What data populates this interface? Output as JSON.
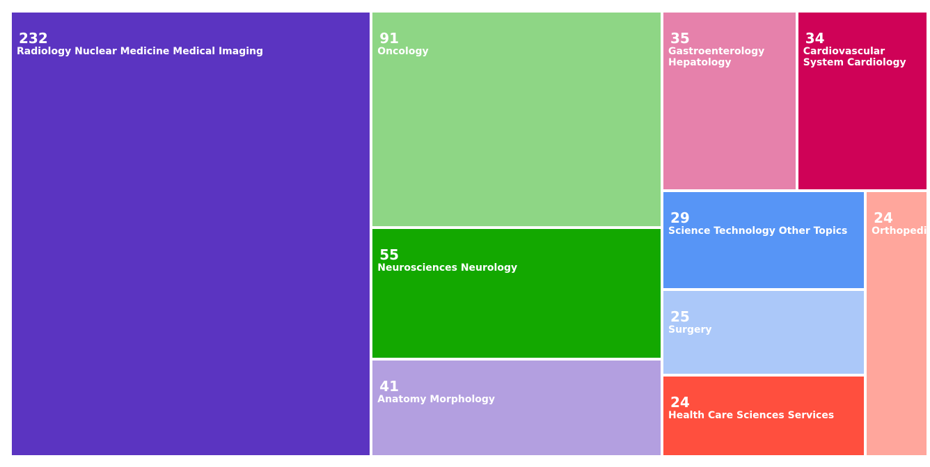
{
  "chart_data": {
    "type": "treemap",
    "categories": [
      "Radiology Nuclear Medicine Medical Imaging",
      "Oncology",
      "Neurosciences Neurology",
      "Anatomy Morphology",
      "Gastroenterology Hepatology",
      "Cardiovascular System Cardiology",
      "Science Technology Other Topics",
      "Surgery",
      "Health Care Sciences Services",
      "Orthopedics"
    ],
    "values": [
      232,
      91,
      55,
      41,
      35,
      34,
      29,
      25,
      24,
      24
    ],
    "colors": [
      "#5b34c1",
      "#8ed685",
      "#13a800",
      "#b39fe0",
      "#e681ab",
      "#cf0257",
      "#5795f6",
      "#abc8f9",
      "#ff4f3e",
      "#ffa69c"
    ]
  }
}
